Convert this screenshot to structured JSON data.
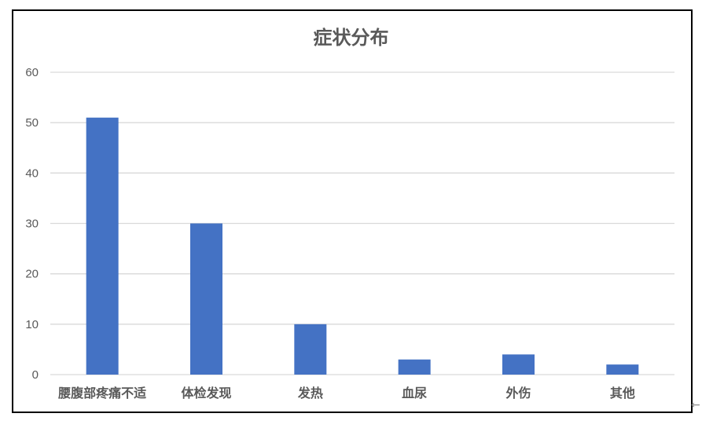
{
  "chart_data": {
    "type": "bar",
    "title": "症状分布",
    "categories": [
      "腰腹部疼痛不适",
      "体检发现",
      "发热",
      "血尿",
      "外伤",
      "其他"
    ],
    "values": [
      51,
      30,
      10,
      3,
      4,
      2
    ],
    "xlabel": "",
    "ylabel": "",
    "ylim": [
      0,
      60
    ],
    "yticks": [
      0,
      10,
      20,
      30,
      40,
      50,
      60
    ],
    "grid": true,
    "legend": "none",
    "colors": {
      "bar": "#4472C4",
      "grid": "#D9D9D9",
      "text": "#595959",
      "border": "#000000"
    }
  },
  "icons": {
    "corner_arrow": "arrow-left-icon"
  }
}
